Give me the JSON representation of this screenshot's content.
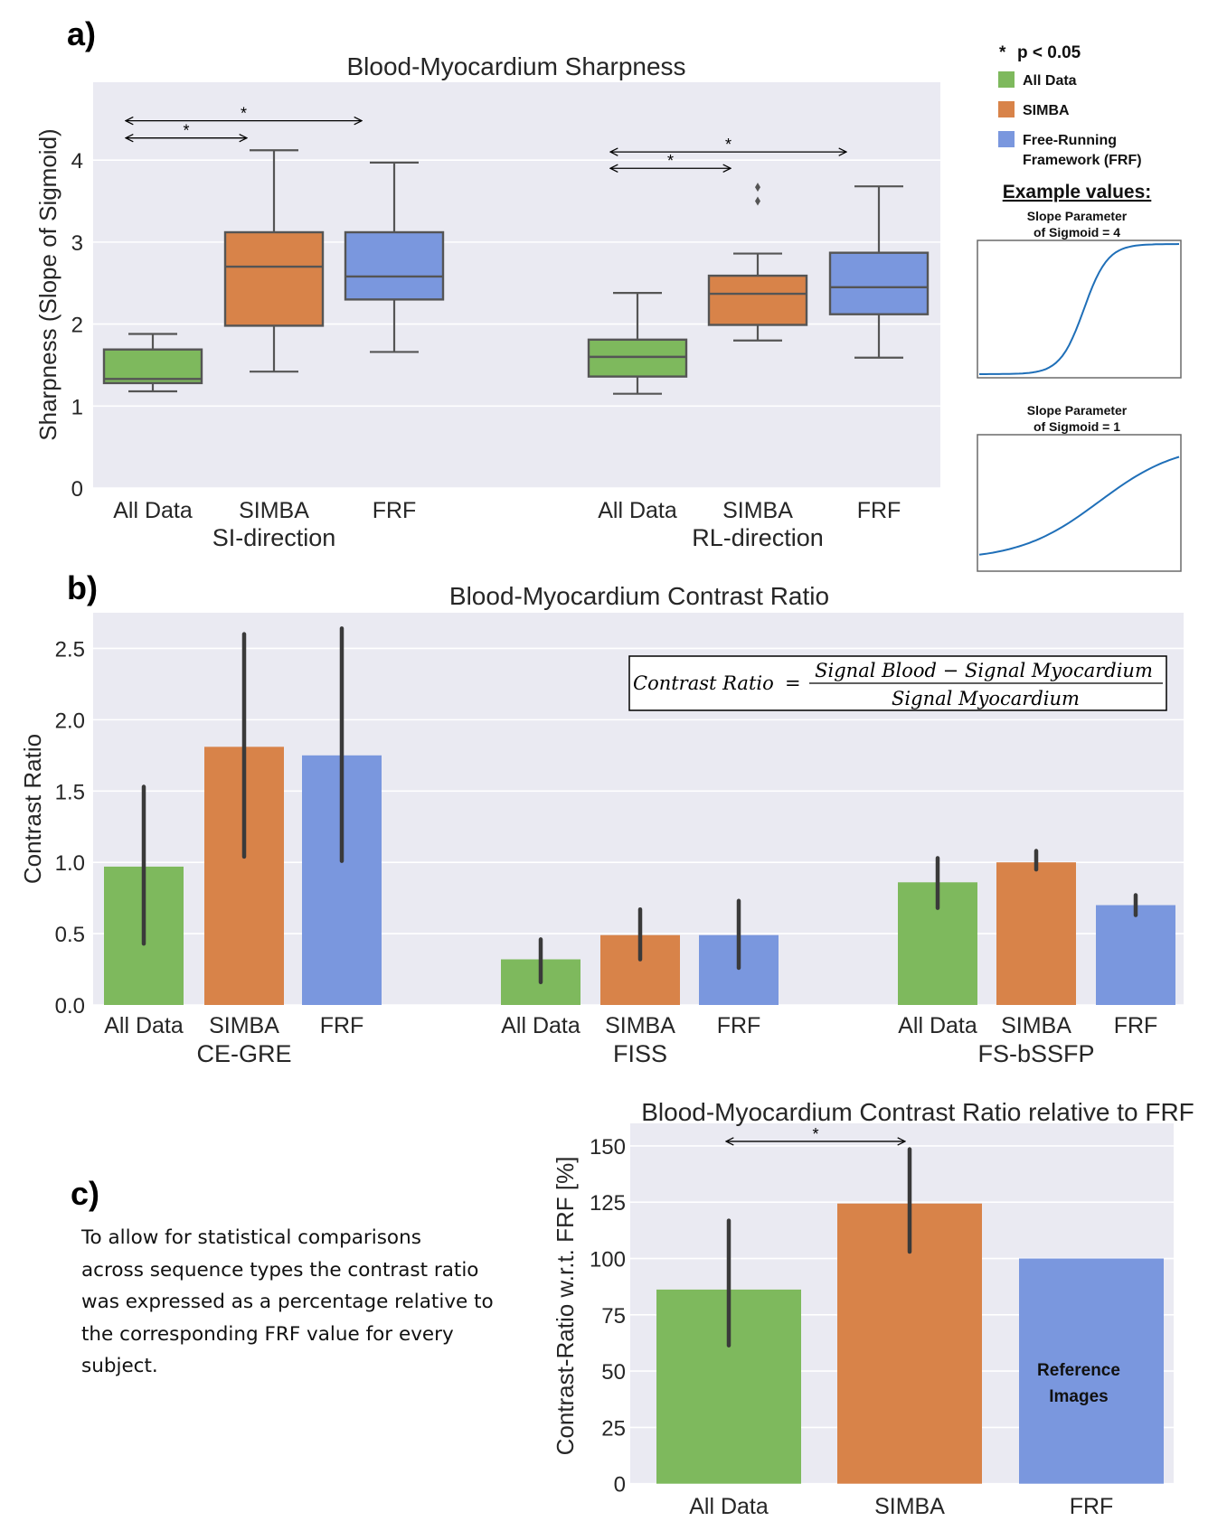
{
  "colors": {
    "all_data": "#7eb95d",
    "simba": "#d88349",
    "frf": "#7a97de",
    "plot_bg": "#eaeaf2",
    "grid": "#ffffff",
    "box_edge": "#555555",
    "errbar": "#3a3a3a",
    "sigmoid": "#1f6fb8"
  },
  "legend": {
    "significance": "p < 0.05",
    "star": "*",
    "items": [
      {
        "key": "all_data",
        "label": "All Data"
      },
      {
        "key": "simba",
        "label": "SIMBA"
      },
      {
        "key": "frf",
        "label": "Free-Running",
        "label2": "Framework (FRF)"
      }
    ],
    "example_title": "Example values:",
    "examples": [
      {
        "line1": "Slope Parameter",
        "line2": "of Sigmoid = 4",
        "slope": 4
      },
      {
        "line1": "Slope Parameter",
        "line2": "of Sigmoid = 1",
        "slope": 1
      }
    ]
  },
  "panels": {
    "a": {
      "label": "a)"
    },
    "b": {
      "label": "b)"
    },
    "c": {
      "label": "c)",
      "description": "To allow for statistical comparisons across sequence types the contrast ratio was expressed as a percentage relative to the corresponding FRF value for every subject.",
      "description_lines": [
        "To allow for statistical comparisons",
        "across sequence  types the contrast ratio",
        "was expressed as a percentage relative to",
        "the corresponding  FRF value for every",
        "subject."
      ]
    }
  },
  "formula": {
    "lhs": "Contrast Ratio",
    "eq": "=",
    "numerator": "Signal Blood  − Signal Myocardium",
    "denominator": "Signal Myocardium"
  },
  "chart_data": [
    {
      "id": "sharpness",
      "type": "box",
      "title": "Blood-Myocardium Sharpness",
      "ylabel": "Sharpness (Slope of Sigmoid)",
      "xlabel": "",
      "ylim": [
        0,
        4.95
      ],
      "yticks": [
        0,
        1,
        2,
        3,
        4
      ],
      "grid": true,
      "groups": [
        {
          "name": "SI-direction",
          "boxes": [
            {
              "label": "All Data",
              "color": "all_data",
              "whislo": 1.18,
              "q1": 1.28,
              "med": 1.33,
              "q3": 1.69,
              "whishi": 1.88,
              "fliers": []
            },
            {
              "label": "SIMBA",
              "color": "simba",
              "whislo": 1.42,
              "q1": 1.98,
              "med": 2.7,
              "q3": 3.12,
              "whishi": 4.12,
              "fliers": []
            },
            {
              "label": "FRF",
              "color": "frf",
              "whislo": 1.66,
              "q1": 2.3,
              "med": 2.58,
              "q3": 3.12,
              "whishi": 3.97,
              "fliers": []
            }
          ],
          "significance": [
            {
              "from": 0,
              "to": 1,
              "y": 4.27,
              "label": "*"
            },
            {
              "from": 0,
              "to": 2,
              "y": 4.48,
              "label": "*"
            }
          ]
        },
        {
          "name": "RL-direction",
          "boxes": [
            {
              "label": "All Data",
              "color": "all_data",
              "whislo": 1.15,
              "q1": 1.36,
              "med": 1.6,
              "q3": 1.81,
              "whishi": 2.38,
              "fliers": []
            },
            {
              "label": "SIMBA",
              "color": "simba",
              "whislo": 1.8,
              "q1": 1.99,
              "med": 2.37,
              "q3": 2.59,
              "whishi": 2.86,
              "fliers": [
                3.5,
                3.67
              ]
            },
            {
              "label": "FRF",
              "color": "frf",
              "whislo": 1.59,
              "q1": 2.12,
              "med": 2.45,
              "q3": 2.87,
              "whishi": 3.68,
              "fliers": []
            }
          ],
          "significance": [
            {
              "from": 0,
              "to": 1,
              "y": 3.9,
              "label": "*"
            },
            {
              "from": 0,
              "to": 2,
              "y": 4.1,
              "label": "*"
            }
          ]
        }
      ]
    },
    {
      "id": "contrast",
      "type": "bar",
      "title": "Blood-Myocardium Contrast Ratio",
      "ylabel": "Contrast Ratio",
      "xlabel": "",
      "ylim": [
        0,
        2.75
      ],
      "yticks": [
        0.0,
        0.5,
        1.0,
        1.5,
        2.0,
        2.5
      ],
      "ytick_labels": [
        "0.0",
        "0.5",
        "1.0",
        "1.5",
        "2.0",
        "2.5"
      ],
      "grid": true,
      "groups": [
        {
          "name": "CE-GRE",
          "bars": [
            {
              "label": "All Data",
              "color": "all_data",
              "value": 0.97,
              "err_low": 0.43,
              "err_high": 1.53
            },
            {
              "label": "SIMBA",
              "color": "simba",
              "value": 1.81,
              "err_low": 1.04,
              "err_high": 2.6
            },
            {
              "label": "FRF",
              "color": "frf",
              "value": 1.75,
              "err_low": 1.01,
              "err_high": 2.64
            }
          ]
        },
        {
          "name": "FISS",
          "bars": [
            {
              "label": "All Data",
              "color": "all_data",
              "value": 0.32,
              "err_low": 0.16,
              "err_high": 0.46
            },
            {
              "label": "SIMBA",
              "color": "simba",
              "value": 0.49,
              "err_low": 0.32,
              "err_high": 0.67
            },
            {
              "label": "FRF",
              "color": "frf",
              "value": 0.49,
              "err_low": 0.26,
              "err_high": 0.73
            }
          ]
        },
        {
          "name": "FS-bSSFP",
          "bars": [
            {
              "label": "All Data",
              "color": "all_data",
              "value": 0.86,
              "err_low": 0.68,
              "err_high": 1.03
            },
            {
              "label": "SIMBA",
              "color": "simba",
              "value": 1.0,
              "err_low": 0.95,
              "err_high": 1.08
            },
            {
              "label": "FRF",
              "color": "frf",
              "value": 0.7,
              "err_low": 0.63,
              "err_high": 0.77
            }
          ]
        }
      ]
    },
    {
      "id": "relative",
      "type": "bar",
      "title": "Blood-Myocardium Contrast Ratio relative to FRF",
      "ylabel": "Contrast-Ratio w.r.t. FRF [%]",
      "xlabel": "",
      "ylim": [
        0,
        160
      ],
      "yticks": [
        0,
        25,
        50,
        75,
        100,
        125,
        150
      ],
      "grid": true,
      "bars": [
        {
          "label": "All Data",
          "color": "all_data",
          "value": 86.2,
          "err_low": 61.4,
          "err_high": 116.8
        },
        {
          "label": "SIMBA",
          "color": "simba",
          "value": 124.4,
          "err_low": 103.0,
          "err_high": 148.5
        },
        {
          "label": "FRF",
          "color": "frf",
          "value": 100,
          "annotation": [
            "Reference",
            "Images"
          ]
        }
      ],
      "significance": [
        {
          "from": 0,
          "to": 1,
          "y": 152,
          "label": "*"
        }
      ]
    }
  ]
}
